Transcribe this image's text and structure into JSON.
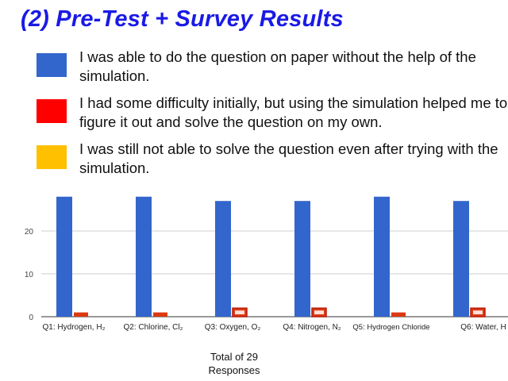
{
  "title": "(2) Pre-Test + Survey Results",
  "legend": [
    {
      "label": "I was able to do the question on paper without the help of the simulation.",
      "color": "#3366cc"
    },
    {
      "label": "I had some difficulty initially, but using the simulation helped me to figure it out and solve the question on my own.",
      "color": "#ff0000"
    },
    {
      "label": "I was still not able to solve the question even after trying with the simulation.",
      "color": "#ffc000"
    }
  ],
  "footer": {
    "line1": "Total of 29",
    "line2": "Responses"
  },
  "chart_data": {
    "type": "bar",
    "categories": [
      "Q1: Hydrogen, H₂",
      "Q2: Chlorine, Cl₂",
      "Q3: Oxygen, O₂",
      "Q4: Nitrogen, N₂",
      "Q5: Hydrogen Chloride",
      "Q6: Water, H"
    ],
    "series": [
      {
        "values": [
          28,
          28,
          27,
          27,
          28,
          27
        ],
        "color": "#3366cc"
      },
      {
        "values": [
          1,
          1,
          2,
          2,
          1,
          2
        ],
        "color": "#dc3912"
      },
      {
        "values": [
          0,
          0,
          0,
          0,
          0,
          0
        ],
        "color": "#ff9900"
      }
    ],
    "highlighted": [
      false,
      false,
      true,
      true,
      false,
      true
    ],
    "yticks": [
      0,
      10,
      20
    ],
    "ylim": [
      0,
      28
    ],
    "grid": true
  }
}
